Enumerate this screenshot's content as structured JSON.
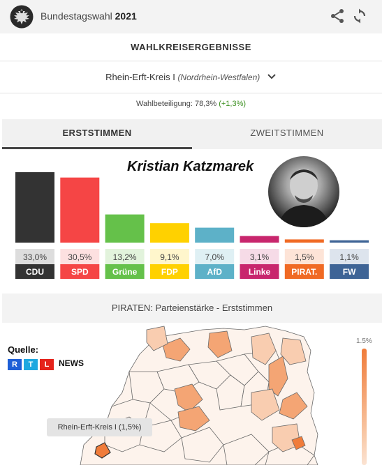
{
  "header": {
    "app_name": "Bundestagswahl",
    "year": "2021",
    "icons": [
      "eagle-logo",
      "share-icon",
      "refresh-icon"
    ]
  },
  "section_title": "WAHLKREISERGEBNISSE",
  "district": {
    "name": "Rhein-Erft-Kreis I",
    "state": "(Nordrhein-Westfalen)"
  },
  "turnout": {
    "label": "Wahlbeteiligung: 78,3%",
    "delta": "(+1,3%)"
  },
  "tabs": [
    {
      "label": "ERSTSTIMMEN",
      "active": true
    },
    {
      "label": "ZWEITSTIMMEN",
      "active": false
    }
  ],
  "candidate": "Kristian Katzmarek",
  "chart_data": {
    "type": "bar",
    "title": "",
    "xlabel": "",
    "ylabel": "",
    "ylim": [
      0,
      35
    ],
    "categories": [
      "CDU",
      "SPD",
      "Grüne",
      "FDP",
      "AfD",
      "Linke",
      "PIRAT.",
      "FW"
    ],
    "values": [
      33.0,
      30.5,
      13.2,
      9.1,
      7.0,
      3.1,
      1.5,
      1.1
    ],
    "value_labels": [
      "33,0%",
      "30,5%",
      "13,2%",
      "9,1%",
      "7,0%",
      "3,1%",
      "1,5%",
      "1,1%"
    ],
    "colors": [
      "#333333",
      "#f54545",
      "#65c14a",
      "#ffd100",
      "#5db1c8",
      "#c8266d",
      "#f06a24",
      "#3e6496"
    ],
    "label_backgrounds": [
      "#dddddd",
      "#fde0e0",
      "#e2f3dc",
      "#fff6cc",
      "#dff0f4",
      "#f6dbe7",
      "#fde4d7",
      "#dde4ed"
    ],
    "grid": false,
    "legend": "none"
  },
  "map": {
    "title": "PIRATEN: Parteienstärke - Erststimmen",
    "source_label": "Quelle:",
    "source_logo": {
      "letters": [
        "R",
        "T",
        "L"
      ],
      "colors": [
        "#1e5fd6",
        "#1fa8e0",
        "#e5231b"
      ],
      "suffix": "NEWS"
    },
    "scale_max": "1.5%",
    "tooltip": "Rhein-Erft-Kreis I (1,5%)",
    "accent": "#f07c3a"
  }
}
